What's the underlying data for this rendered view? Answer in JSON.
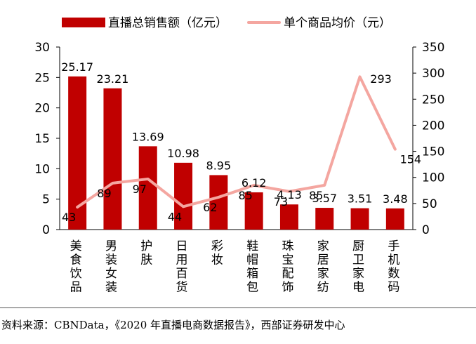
{
  "chart_data": {
    "type": "bar",
    "categories": [
      "美食饮品",
      "男装女装",
      "护肤",
      "日用百货",
      "彩妆",
      "鞋帽箱包",
      "珠宝配饰",
      "家居家纺",
      "厨卫家电",
      "手机数码"
    ],
    "series": [
      {
        "name": "直播总销售额（亿元）",
        "type": "bar",
        "axis": "left",
        "color": "#c00000",
        "values": [
          25.17,
          23.21,
          13.69,
          10.98,
          8.95,
          6.12,
          4.13,
          3.57,
          3.51,
          3.48
        ]
      },
      {
        "name": "单个商品均价（元）",
        "type": "line",
        "axis": "right",
        "color": "#f4a6a0",
        "values": [
          43,
          89,
          97,
          44,
          62,
          85,
          73,
          85,
          293,
          154
        ]
      }
    ],
    "bar_labels": [
      "25.17",
      "23.21",
      "13.69",
      "10.98",
      "8.95",
      "6.12",
      "4.13",
      "3.57",
      "3.51",
      "3.48"
    ],
    "line_labels": [
      "43",
      "89",
      "97",
      "44",
      "62",
      "85",
      "73",
      "85",
      "293",
      "154"
    ],
    "y_left": {
      "min": 0,
      "max": 30,
      "ticks": [
        "0",
        "5",
        "10",
        "15",
        "20",
        "25",
        "30"
      ]
    },
    "y_right": {
      "min": 0,
      "max": 350,
      "ticks": [
        "0",
        "50",
        "100",
        "150",
        "200",
        "250",
        "300",
        "350"
      ]
    },
    "legend_position": "top",
    "grid": false
  },
  "source_note": "资料来源：CBNData，《2020 年直播电商数据报告》，西部证券研发中心"
}
